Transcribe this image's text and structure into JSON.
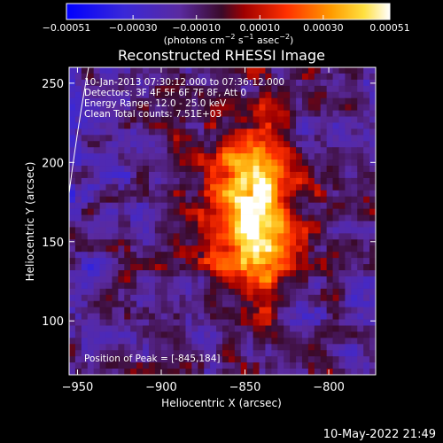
{
  "chart_data": {
    "type": "heatmap",
    "title": "Reconstructed RHESSI Image",
    "xlabel": "Heliocentric X (arcsec)",
    "ylabel": "Heliocentric Y (arcsec)",
    "xlim": [
      -955,
      -772
    ],
    "ylim": [
      66,
      260
    ],
    "xticks": [
      {
        "value": -950,
        "label": "−950"
      },
      {
        "value": -900,
        "label": "−900"
      },
      {
        "value": -850,
        "label": "−850"
      },
      {
        "value": -800,
        "label": "−800"
      }
    ],
    "yticks": [
      {
        "value": 100,
        "label": "100"
      },
      {
        "value": 150,
        "label": "150"
      },
      {
        "value": 200,
        "label": "200"
      },
      {
        "value": 250,
        "label": "250"
      }
    ],
    "colorbar": {
      "min": -0.00051,
      "max": 0.00051,
      "ticks": [
        {
          "value": -0.00051,
          "label": "−0.00051"
        },
        {
          "value": -0.0003,
          "label": "−0.00030"
        },
        {
          "value": -0.0001,
          "label": "−0.00010"
        },
        {
          "value": 0.0001,
          "label": "0.00010"
        },
        {
          "value": 0.0003,
          "label": "0.00030"
        },
        {
          "value": 0.00051,
          "label": "0.00051"
        }
      ],
      "units_main": "(photons cm",
      "units_exp1": "−2",
      "units_mid": " s",
      "units_exp2": "−1",
      "units_mid2": " asec",
      "units_exp3": "−2",
      "units_end": ")",
      "colormap": "blue-purple-red-orange-yellow-white"
    },
    "annotations": {
      "time_range": "10-Jan-2013 07:30:12.000 to 07:36:12.000",
      "detectors": "Detectors: 3F 4F 5F 6F 7F 8F, Att 0",
      "energy_range": "Energy Range: 12.0 - 25.0 keV",
      "clean": "Clean     Total counts: 7.51E+03",
      "peak": "Position of Peak = [-845,184]"
    },
    "peak": {
      "x": -845,
      "y": 184
    },
    "grid": false
  },
  "footer": {
    "timestamp": "10-May-2022 21:49"
  }
}
